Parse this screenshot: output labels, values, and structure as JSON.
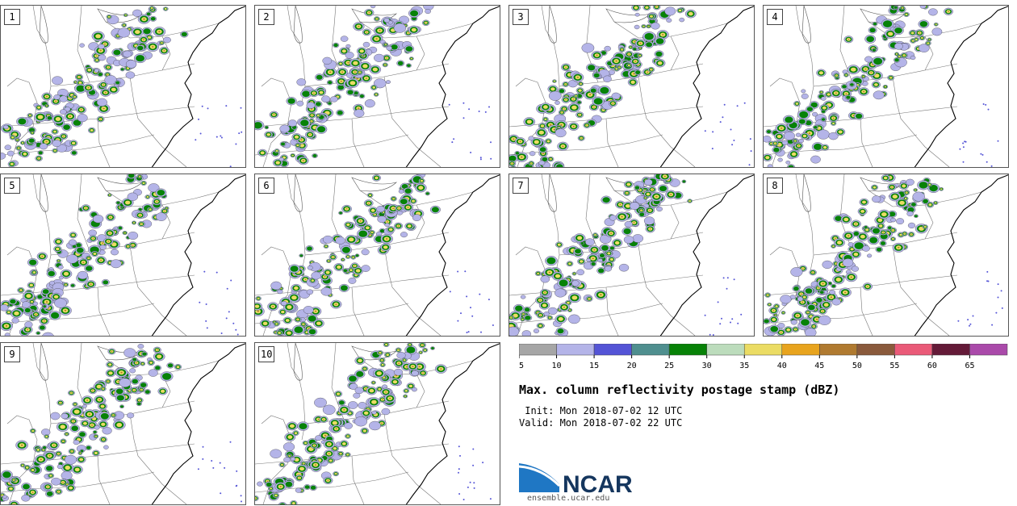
{
  "panels": [
    {
      "label": "1"
    },
    {
      "label": "2"
    },
    {
      "label": "3"
    },
    {
      "label": "4"
    },
    {
      "label": "5"
    },
    {
      "label": "6"
    },
    {
      "label": "7"
    },
    {
      "label": "8"
    },
    {
      "label": "9"
    },
    {
      "label": "10"
    }
  ],
  "colorbar": {
    "ticks": [
      "5",
      "10",
      "15",
      "20",
      "25",
      "30",
      "35",
      "40",
      "45",
      "50",
      "55",
      "60",
      "65"
    ],
    "colors": [
      "#a6a6a6",
      "#b4b4e8",
      "#5454d6",
      "#4f8f8f",
      "#078207",
      "#bcdcbc",
      "#ebdc64",
      "#e8a41e",
      "#b07a30",
      "#8a5a3c",
      "#ea5a78",
      "#641a38",
      "#aa4aaa"
    ]
  },
  "title": "Max. column reflectivity postage stamp (dBZ)",
  "init": " Init: Mon 2018-07-02 12 UTC",
  "valid": "Valid: Mon 2018-07-02 22 UTC",
  "logo_text": "NCAR",
  "site": "ensemble.ucar.edu"
}
